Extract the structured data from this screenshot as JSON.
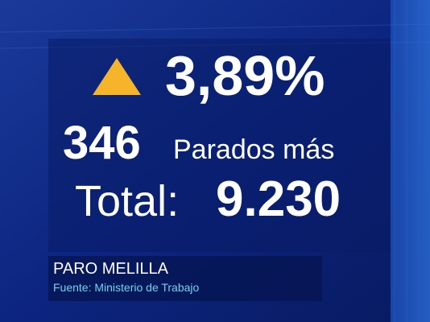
{
  "stats": {
    "change": "3,89%",
    "count": "346",
    "count_label": "Parados más",
    "total_label": "Total:",
    "total": "9.230"
  },
  "footer": {
    "title": "PARO MELILLA",
    "source": "Fuente: Ministerio de Trabajo"
  }
}
